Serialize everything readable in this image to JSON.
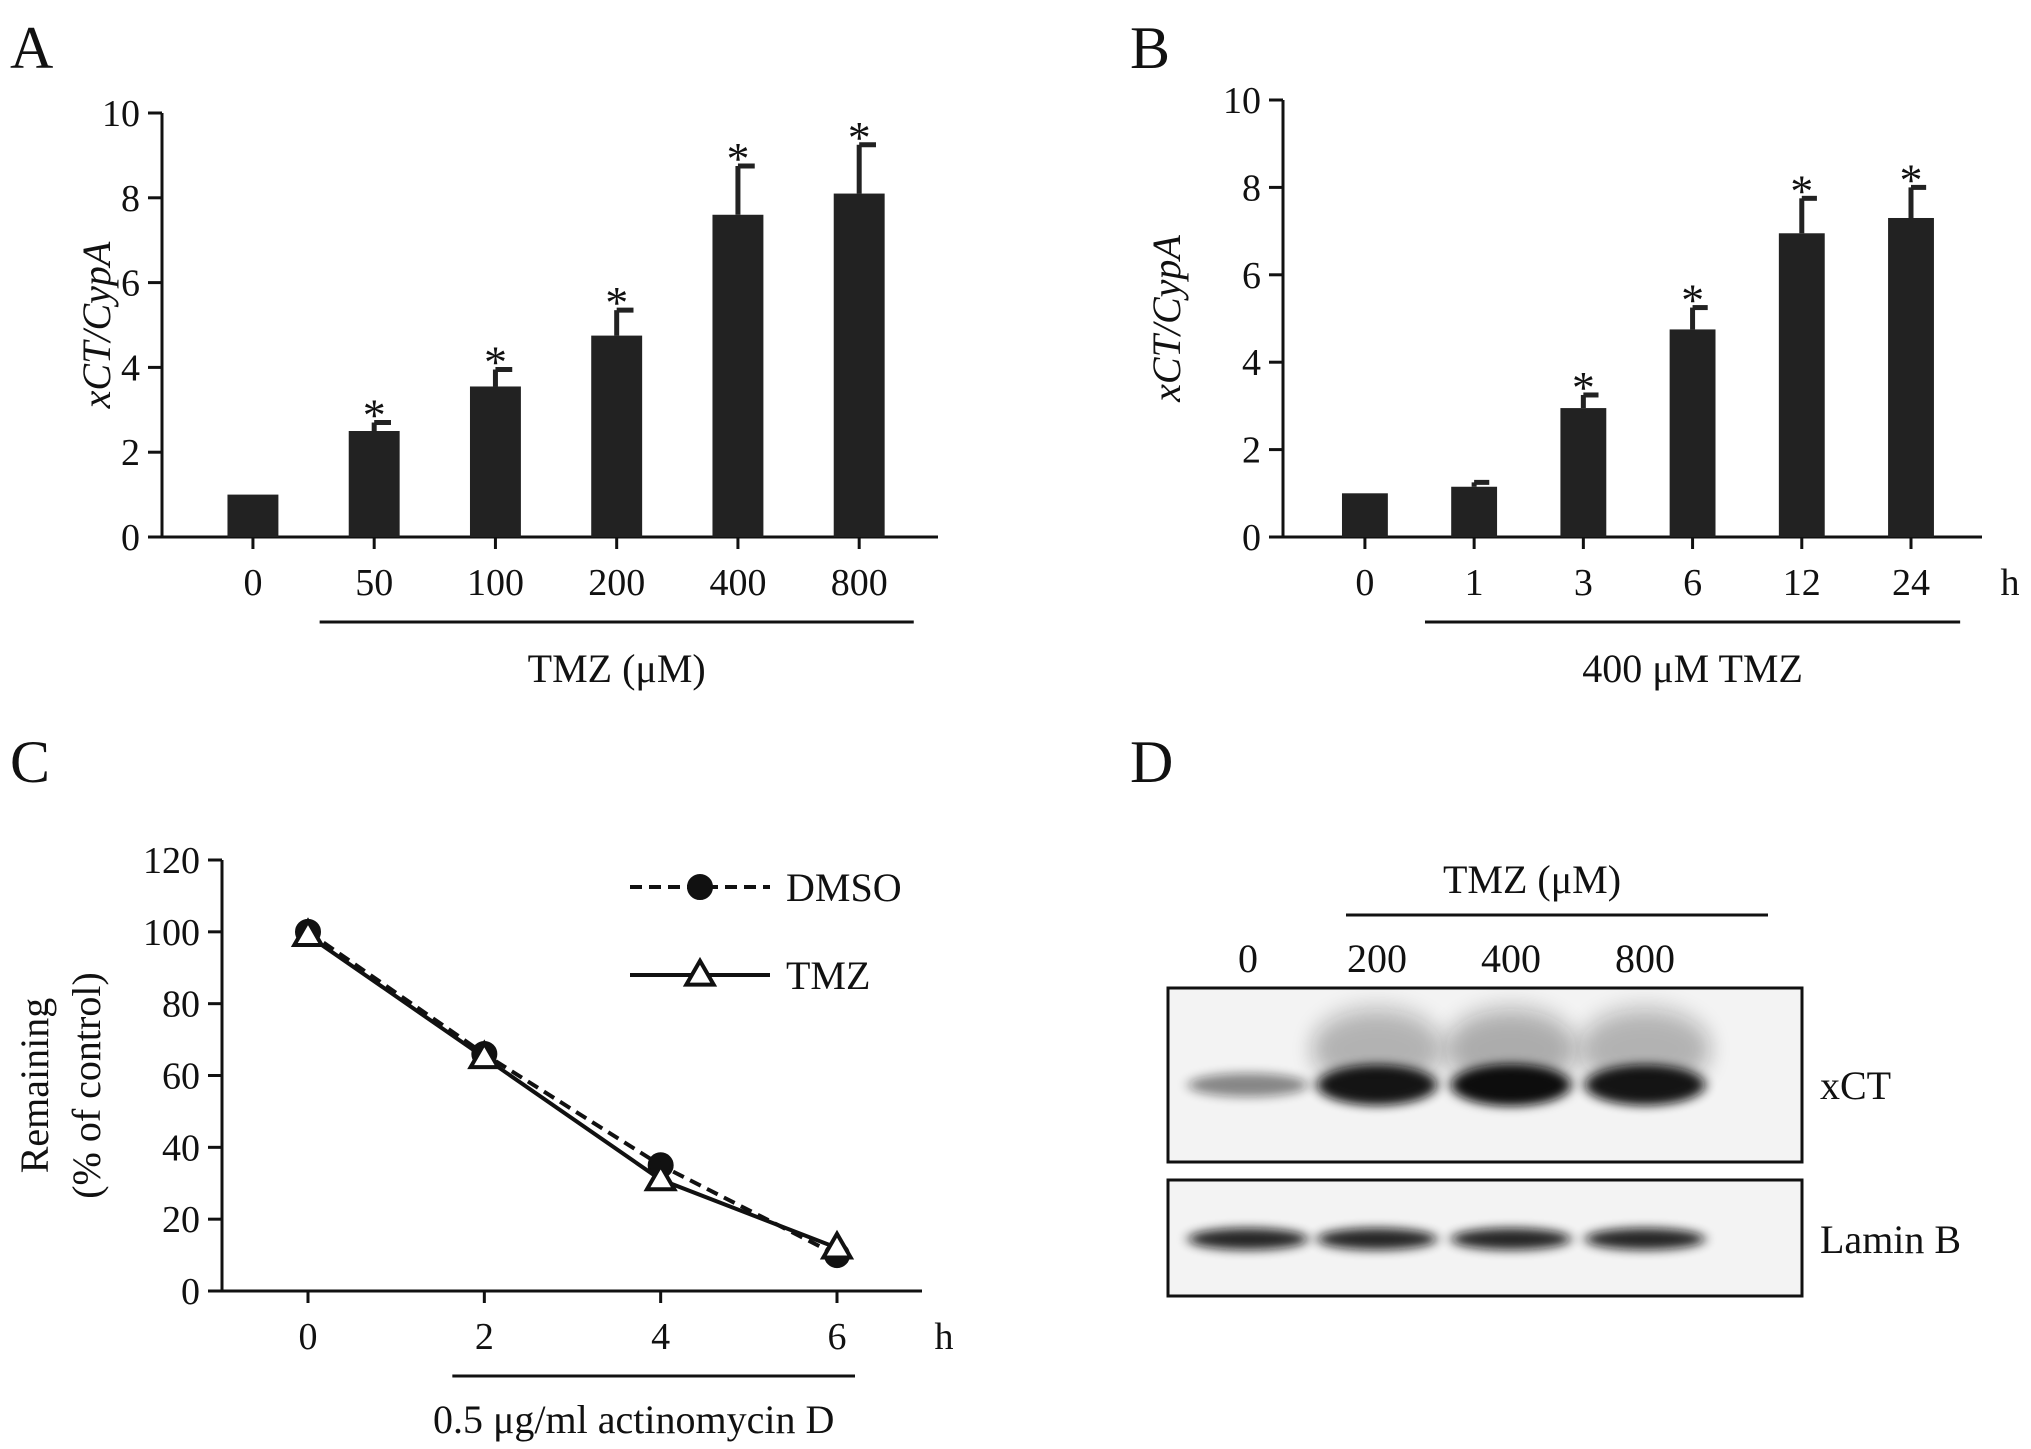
{
  "panels": {
    "A": {
      "letter": "A"
    },
    "B": {
      "letter": "B"
    },
    "C": {
      "letter": "C"
    },
    "D": {
      "letter": "D"
    }
  },
  "chart_data": [
    {
      "panel": "A",
      "type": "bar",
      "categories": [
        "0",
        "50",
        "100",
        "200",
        "400",
        "800"
      ],
      "values": [
        1.0,
        2.5,
        3.55,
        4.75,
        7.6,
        8.1
      ],
      "errors": [
        0.0,
        0.2,
        0.4,
        0.6,
        1.15,
        1.15
      ],
      "significant": [
        false,
        true,
        true,
        true,
        true,
        true
      ],
      "star_label": "*",
      "ylabel": "xCT/CypA",
      "xgroup_label": "TMZ (μM)",
      "ylim": [
        0,
        10
      ],
      "yticks": [
        "0",
        "2",
        "4",
        "6",
        "8",
        "10"
      ],
      "bar_color": "#222222"
    },
    {
      "panel": "B",
      "type": "bar",
      "categories": [
        "0",
        "1",
        "3",
        "6",
        "12",
        "24"
      ],
      "values": [
        1.0,
        1.15,
        2.95,
        4.75,
        6.95,
        7.3
      ],
      "errors": [
        0.0,
        0.1,
        0.3,
        0.5,
        0.8,
        0.7
      ],
      "significant": [
        false,
        false,
        true,
        true,
        true,
        true
      ],
      "star_label": "*",
      "ylabel": "xCT/CypA",
      "xunit": "h",
      "xgroup_label": "400 μM TMZ",
      "ylim": [
        0,
        10
      ],
      "yticks": [
        "0",
        "2",
        "4",
        "6",
        "8",
        "10"
      ],
      "bar_color": "#222222"
    },
    {
      "panel": "C",
      "type": "line",
      "x": [
        0,
        2,
        4,
        6
      ],
      "xticks": [
        "0",
        "2",
        "4",
        "6"
      ],
      "xunit": "h",
      "xgroup_label": "0.5 μg/ml actinomycin D",
      "ylabel": "Remaining",
      "ylabel2": "(% of control)",
      "ylim": [
        0,
        120
      ],
      "yticks": [
        "0",
        "20",
        "40",
        "60",
        "80",
        "100",
        "120"
      ],
      "legend_position": "top-right",
      "series": [
        {
          "name": "DMSO",
          "values": [
            100,
            66,
            35,
            10
          ],
          "marker": "filled-circle",
          "line": "dashed"
        },
        {
          "name": "TMZ",
          "values": [
            99,
            65,
            31,
            12
          ],
          "marker": "open-triangle",
          "line": "solid"
        }
      ]
    },
    {
      "panel": "D",
      "type": "blot",
      "group_label": "TMZ (μM)",
      "lanes": [
        "0",
        "200",
        "400",
        "800"
      ],
      "bands": [
        {
          "name": "xCT",
          "intensity": [
            0.3,
            0.95,
            1.0,
            0.95
          ]
        },
        {
          "name": "Lamin B",
          "intensity": [
            0.85,
            0.85,
            0.85,
            0.85
          ]
        }
      ]
    }
  ]
}
